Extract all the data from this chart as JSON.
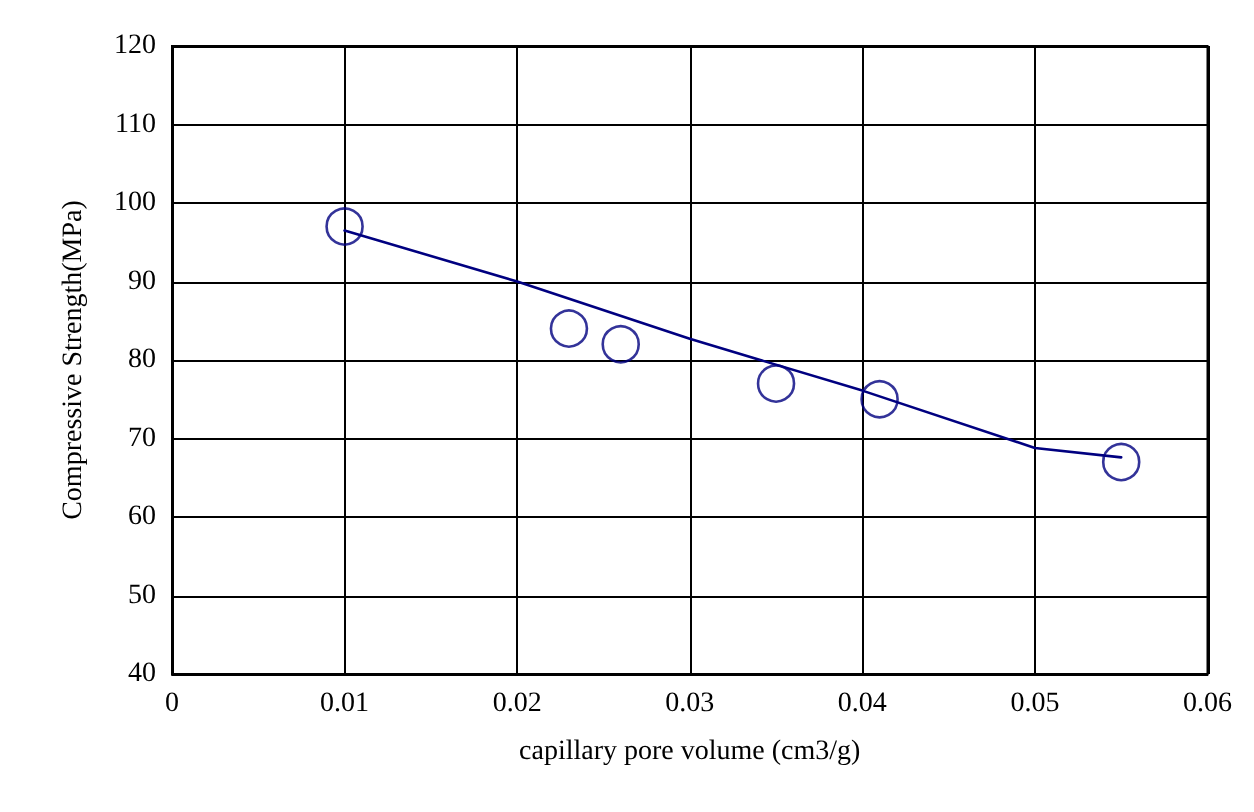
{
  "chart_data": {
    "type": "scatter",
    "xlabel": "capillary pore volume (cm3/g)",
    "ylabel": "Compressive Strength(MPa)",
    "xlim": [
      0,
      0.06
    ],
    "xticks": [
      0,
      0.01,
      0.02,
      0.03,
      0.04,
      0.05,
      0.06
    ],
    "ylim": [
      40,
      120
    ],
    "yticks": [
      40,
      50,
      60,
      70,
      80,
      90,
      100,
      110,
      120
    ],
    "grid": true,
    "series": [
      {
        "color": "#000080",
        "marker": "circle",
        "x": [
          0.01,
          0.023,
          0.026,
          0.035,
          0.041,
          0.055
        ],
        "values": [
          97,
          84,
          82,
          77,
          75,
          67
        ]
      },
      {
        "type": "line",
        "color": "#000080",
        "marker": "none",
        "line_style": "solid",
        "x": [
          0.01,
          0.02,
          0.03,
          0.04,
          0.05,
          0.055
        ],
        "values": [
          96.5,
          90,
          82.7,
          76.1,
          68.8,
          67.6
        ]
      }
    ]
  }
}
